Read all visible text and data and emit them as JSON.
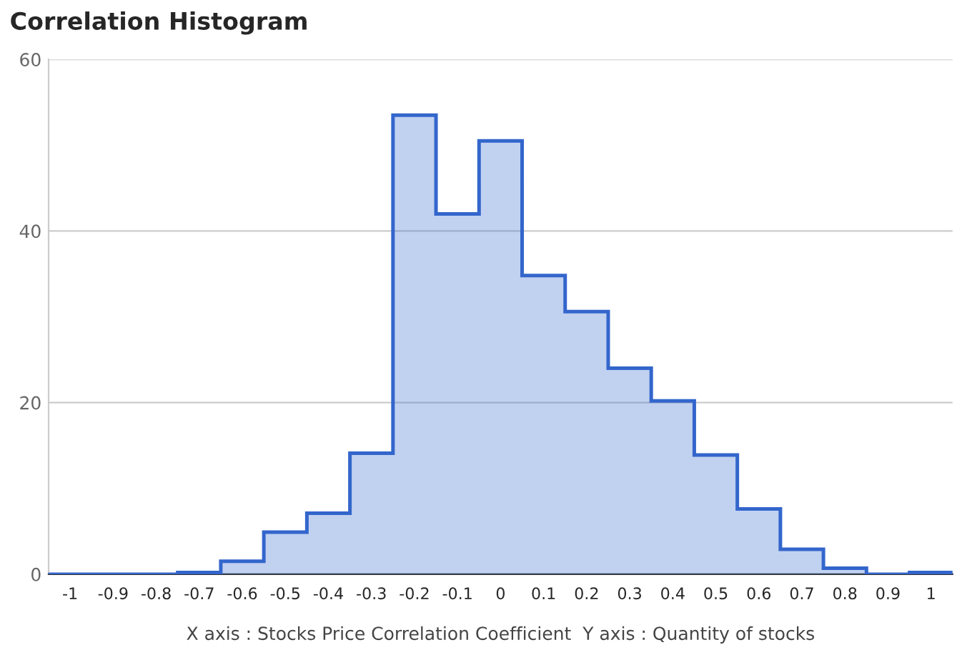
{
  "chart_data": {
    "type": "histogram",
    "title": "Correlation Histogram",
    "xlabel": "X axis : Stocks Price Correlation Coefficient  Y axis : Quantity of stocks",
    "bins": [
      -1.05,
      -0.95,
      -0.85,
      -0.75,
      -0.65,
      -0.55,
      -0.45,
      -0.35,
      -0.25,
      -0.15,
      -0.05,
      0.05,
      0.15,
      0.25,
      0.35,
      0.45,
      0.55,
      0.65,
      0.75,
      0.85,
      0.95,
      1.05
    ],
    "values": [
      0,
      0,
      0,
      0.2,
      1.5,
      4.9,
      7.1,
      14.1,
      53.5,
      42,
      50.5,
      34.8,
      30.6,
      24,
      20.2,
      13.9,
      7.6,
      2.9,
      0.7,
      0,
      0.2
    ],
    "color": "#3366cc",
    "xlim": [
      -1.05,
      1.05
    ],
    "xticks": [
      -1,
      -0.9,
      -0.8,
      -0.7,
      -0.6,
      -0.5,
      -0.4,
      -0.3,
      -0.2,
      -0.1,
      0,
      0.1,
      0.2,
      0.3,
      0.4,
      0.5,
      0.6,
      0.7,
      0.8,
      0.9,
      1
    ],
    "ylim": [
      0,
      60
    ],
    "yticks": [
      0,
      20,
      40,
      60
    ],
    "grid": "y"
  }
}
